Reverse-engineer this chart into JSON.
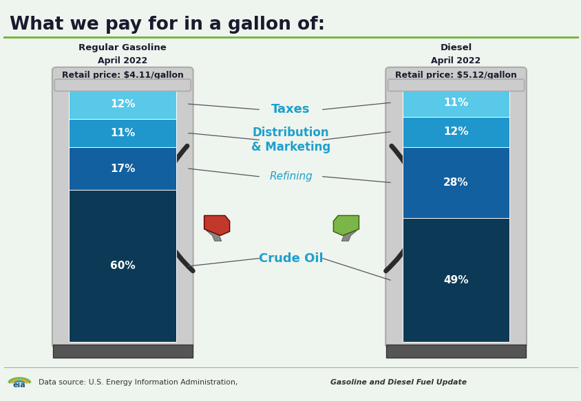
{
  "title": "What we pay for in a gallon of:",
  "title_fontsize": 19,
  "background_color": "#eef4ee",
  "gasoline": {
    "label": "Regular Gasoline",
    "date": "April 2022",
    "price": "Retail price: $4.11/gallon",
    "segments": [
      60,
      17,
      11,
      12
    ],
    "labels": [
      "60%",
      "17%",
      "11%",
      "12%"
    ],
    "colors": [
      "#0c3a56",
      "#1260a0",
      "#2097cc",
      "#58c9e8"
    ]
  },
  "diesel": {
    "label": "Diesel",
    "date": "April 2022",
    "price": "Retail price: $5.12/gallon",
    "segments": [
      49,
      28,
      12,
      11
    ],
    "labels": [
      "49%",
      "28%",
      "12%",
      "11%"
    ],
    "colors": [
      "#0c3a56",
      "#1260a0",
      "#2097cc",
      "#58c9e8"
    ]
  },
  "legend_text_color": "#1ea0cc",
  "legend_items": [
    {
      "label": "Taxes",
      "seg_idx": 3,
      "fontsize": 13,
      "fontweight": "bold",
      "style": "normal"
    },
    {
      "label": "Distribution\n& Marketing",
      "seg_idx": 2,
      "fontsize": 12,
      "fontweight": "bold",
      "style": "normal"
    },
    {
      "label": "Refining",
      "seg_idx": 1,
      "fontsize": 11,
      "fontweight": "normal",
      "style": "italic"
    },
    {
      "label": "Crude Oil",
      "seg_idx": 0,
      "fontsize": 13,
      "fontweight": "bold",
      "style": "normal"
    }
  ],
  "header_line_color": "#7ab648",
  "nozzle_left_color": "#c0392b",
  "nozzle_right_color": "#7ab648",
  "source_text": "Data source: U.S. Energy Information Administration, ",
  "source_italic": "Gasoline and Diesel Fuel Update"
}
